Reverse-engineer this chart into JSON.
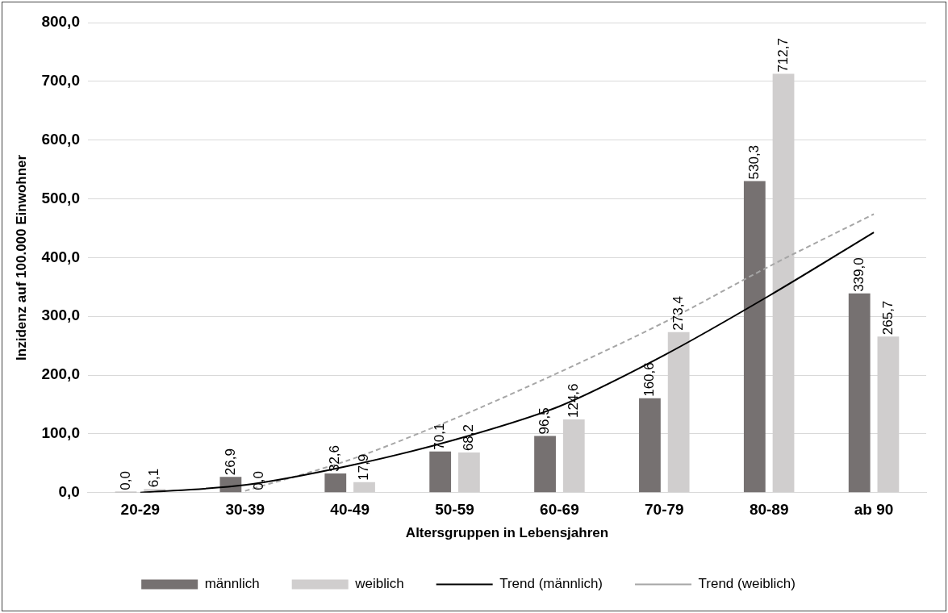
{
  "chart_data": {
    "type": "bar",
    "xlabel": "Altersgruppen in Lebensjahren",
    "ylabel": "Inzidenz auf 100.000 Einwohner",
    "categories": [
      "20-29",
      "30-39",
      "40-49",
      "50-59",
      "60-69",
      "70-79",
      "80-89",
      "ab 90"
    ],
    "series": [
      {
        "name": "männlich",
        "color": "#767171",
        "values": [
          0.0,
          26.9,
          32.6,
          70.1,
          96.5,
          160.6,
          530.3,
          339.0
        ],
        "value_labels": [
          "0,0",
          "26,9",
          "32,6",
          "70,1",
          "96,5",
          "160,6",
          "530,3",
          "339,0"
        ]
      },
      {
        "name": "weiblich",
        "color": "#d0cece",
        "values": [
          6.1,
          0.0,
          17.9,
          68.2,
          124.6,
          273.4,
          712.7,
          265.7
        ],
        "value_labels": [
          "6,1",
          "0,0",
          "17,9",
          "68,2",
          "124,6",
          "273,4",
          "712,7",
          "265,7"
        ]
      },
      {
        "name": "Trend (männlich)",
        "type": "line",
        "color": "#000000",
        "line_style": "solid",
        "values": [
          0,
          13,
          46,
          90,
          147,
          234,
          335,
          443
        ]
      },
      {
        "name": "Trend (weiblich)",
        "type": "line",
        "color": "#a6a6a6",
        "line_style": "dashed",
        "values": [
          null,
          3,
          56,
          126,
          205,
          290,
          385,
          474
        ]
      }
    ],
    "ylim": [
      0,
      800
    ],
    "yticks": [
      {
        "value": 0,
        "label": "0,0"
      },
      {
        "value": 100,
        "label": "100,0"
      },
      {
        "value": 200,
        "label": "200,0"
      },
      {
        "value": 300,
        "label": "300,0"
      },
      {
        "value": 400,
        "label": "400,0"
      },
      {
        "value": 500,
        "label": "500,0"
      },
      {
        "value": 600,
        "label": "600,0"
      },
      {
        "value": 700,
        "label": "700,0"
      },
      {
        "value": 800,
        "label": "800,0"
      }
    ],
    "grid": "y",
    "legend": "bottom",
    "marker": "none"
  }
}
